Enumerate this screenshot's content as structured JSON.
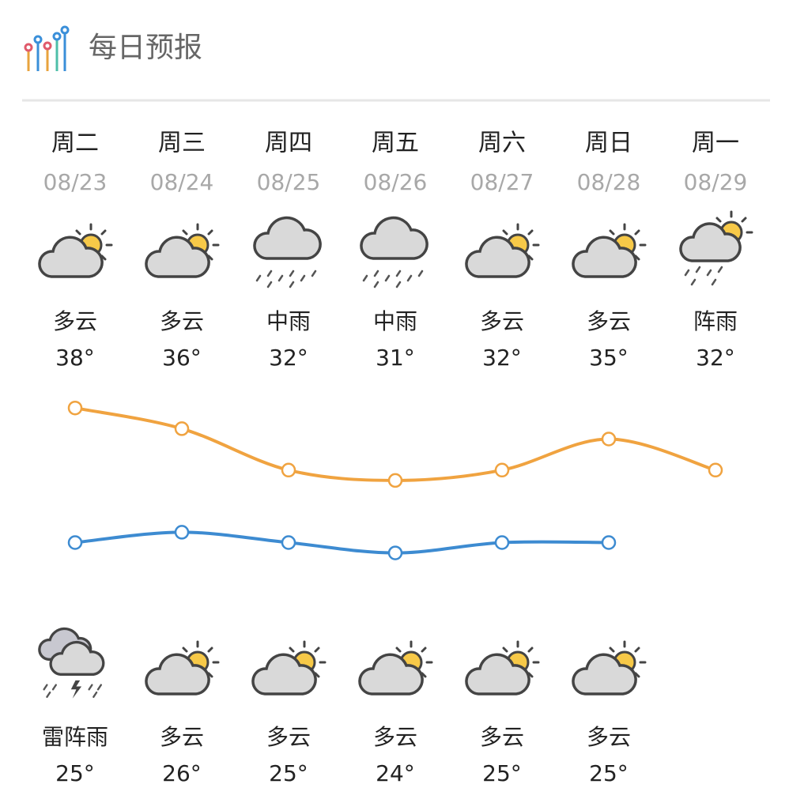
{
  "header": {
    "title": "每日预报"
  },
  "days": [
    {
      "weekday": "周二",
      "date": "08/23",
      "day_weather": "多云",
      "high": 38,
      "high_label": "38°",
      "night_weather": "雷阵雨",
      "low": 25,
      "low_label": "25°"
    },
    {
      "weekday": "周三",
      "date": "08/24",
      "day_weather": "多云",
      "high": 36,
      "high_label": "36°",
      "night_weather": "多云",
      "low": 26,
      "low_label": "26°"
    },
    {
      "weekday": "周四",
      "date": "08/25",
      "day_weather": "中雨",
      "high": 32,
      "high_label": "32°",
      "night_weather": "多云",
      "low": 25,
      "low_label": "25°"
    },
    {
      "weekday": "周五",
      "date": "08/26",
      "day_weather": "中雨",
      "high": 31,
      "high_label": "31°",
      "night_weather": "多云",
      "low": 24,
      "low_label": "24°"
    },
    {
      "weekday": "周六",
      "date": "08/27",
      "day_weather": "多云",
      "high": 32,
      "high_label": "32°",
      "night_weather": "多云",
      "low": 25,
      "low_label": "25°"
    },
    {
      "weekday": "周日",
      "date": "08/28",
      "day_weather": "多云",
      "high": 35,
      "high_label": "35°",
      "night_weather": "多云",
      "low": 25,
      "low_label": "25°"
    },
    {
      "weekday": "周一",
      "date": "08/29",
      "day_weather": "阵雨",
      "high": 32,
      "high_label": "32°"
    }
  ]
}
